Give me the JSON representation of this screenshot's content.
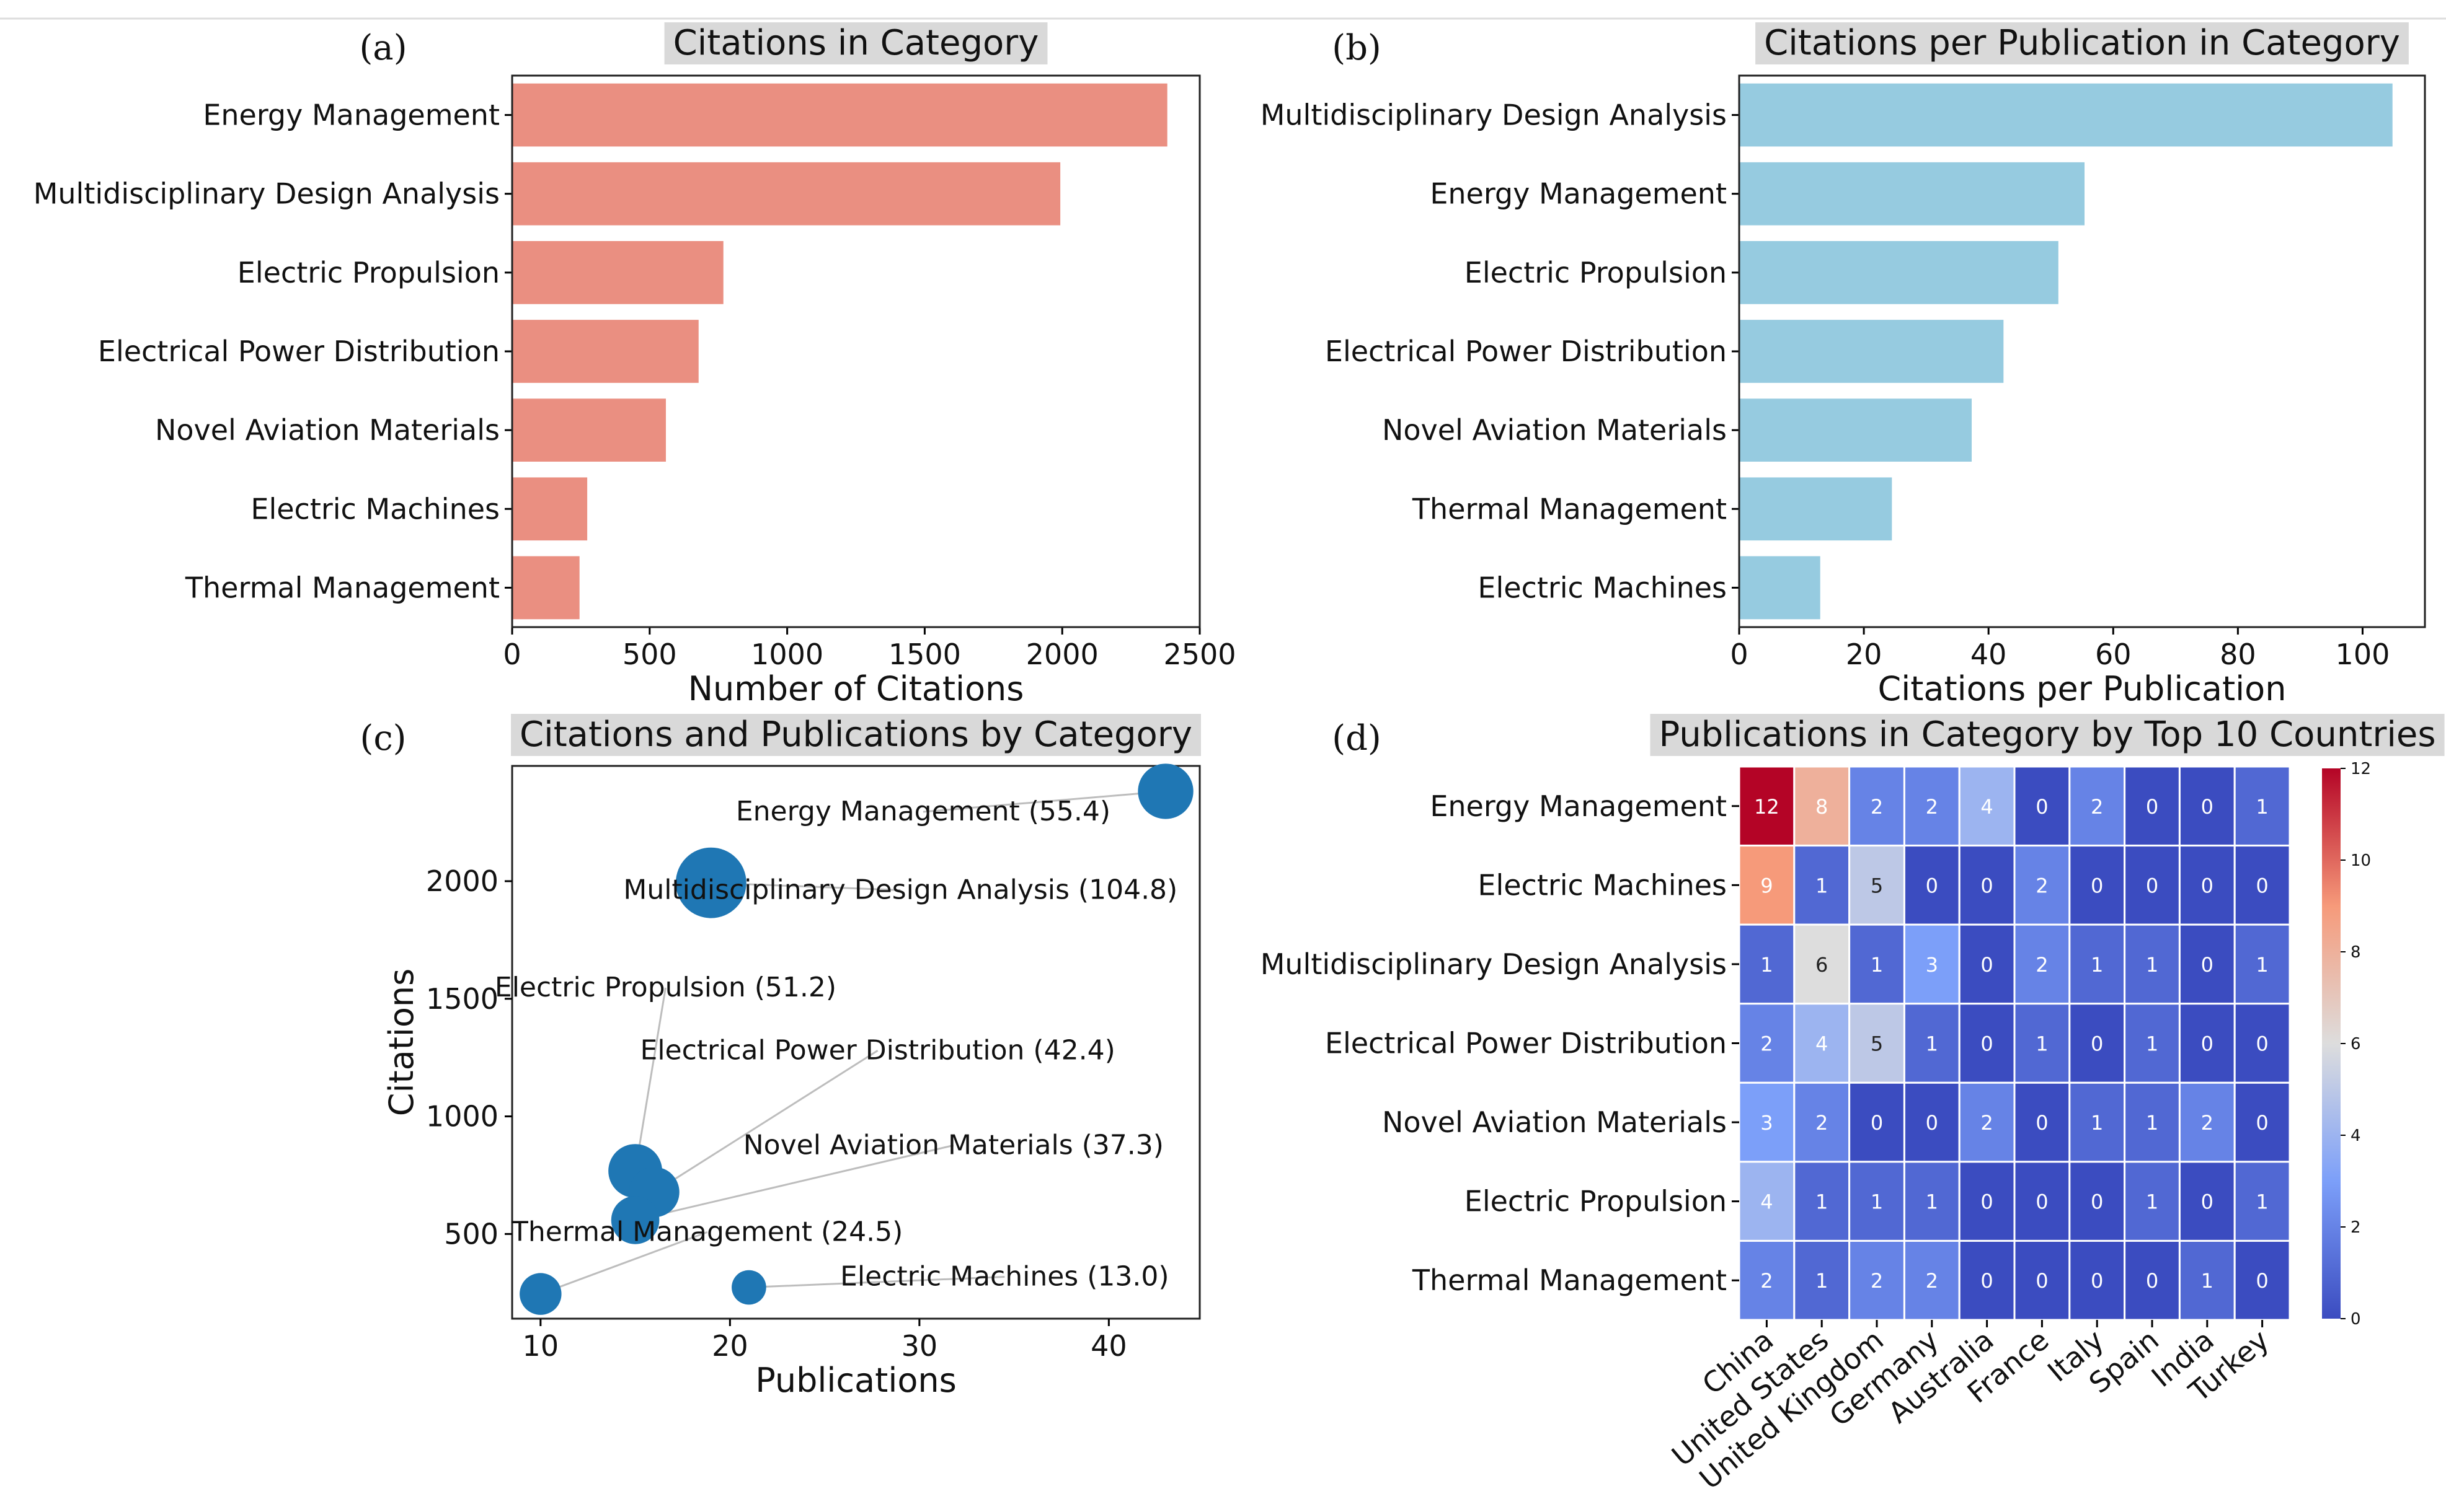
{
  "panels": {
    "a": {
      "letter": "(a)"
    },
    "b": {
      "letter": "(b)"
    },
    "c": {
      "letter": "(c)"
    },
    "d": {
      "letter": "(d)"
    }
  },
  "chart_data": [
    {
      "id": "a",
      "type": "bar",
      "orientation": "horizontal",
      "title": "Citations in Category",
      "xlabel": "Number of Citations",
      "ylabel": "",
      "categories": [
        "Energy Management",
        "Multidisciplinary Design Analysis",
        "Electric Propulsion",
        "Electrical Power Distribution",
        "Novel Aviation Materials",
        "Electric Machines",
        "Thermal Management"
      ],
      "values": [
        2382,
        1993,
        768,
        678,
        559,
        273,
        245
      ],
      "xlim": [
        0,
        2500
      ],
      "xticks": [
        0,
        500,
        1000,
        1500,
        2000,
        2500
      ],
      "color": "#ea8f81",
      "grid": false
    },
    {
      "id": "b",
      "type": "bar",
      "orientation": "horizontal",
      "title": "Citations per Publication in Category",
      "xlabel": "Citations per Publication",
      "ylabel": "",
      "categories": [
        "Multidisciplinary Design Analysis",
        "Energy Management",
        "Electric Propulsion",
        "Electrical Power Distribution",
        "Novel Aviation Materials",
        "Thermal Management",
        "Electric Machines"
      ],
      "values": [
        104.8,
        55.4,
        51.2,
        42.4,
        37.3,
        24.5,
        13.0
      ],
      "xlim": [
        0,
        110
      ],
      "xticks": [
        0,
        20,
        40,
        60,
        80,
        100
      ],
      "color": "#96cbe0",
      "grid": false
    },
    {
      "id": "c",
      "type": "scatter",
      "title": "Citations and Publications by Category",
      "xlabel": "Publications",
      "ylabel": "Citations",
      "xlim": [
        8.5,
        44.8
      ],
      "ylim": [
        140,
        2490
      ],
      "xticks": [
        10,
        20,
        30,
        40
      ],
      "yticks": [
        500,
        1000,
        1500,
        2000
      ],
      "color": "#1f77b4",
      "points": [
        {
          "name": "Energy Management",
          "x": 43,
          "y": 2382,
          "size": 55.4,
          "label": "Energy Management (55.4)",
          "label_x": 30.2,
          "label_y": 2258
        },
        {
          "name": "Multidisciplinary Design Analysis",
          "x": 19,
          "y": 1993,
          "size": 104.8,
          "label": "Multidisciplinary Design Analysis (104.8)",
          "label_x": 29.0,
          "label_y": 1925
        },
        {
          "name": "Electric Propulsion",
          "x": 15,
          "y": 768,
          "size": 51.2,
          "label": "Electric Propulsion (51.2)",
          "label_x": 16.6,
          "label_y": 1510
        },
        {
          "name": "Electrical Power Distribution",
          "x": 16,
          "y": 678,
          "size": 42.4,
          "label": "Electrical Power Distribution (42.4)",
          "label_x": 27.8,
          "label_y": 1243
        },
        {
          "name": "Novel Aviation Materials",
          "x": 15,
          "y": 559,
          "size": 37.3,
          "label": "Novel Aviation Materials (37.3)",
          "label_x": 31.8,
          "label_y": 840
        },
        {
          "name": "Thermal Management",
          "x": 10,
          "y": 245,
          "size": 24.5,
          "label": "Thermal Management (24.5)",
          "label_x": 18.8,
          "label_y": 471
        },
        {
          "name": "Electric Machines",
          "x": 21,
          "y": 273,
          "size": 13.0,
          "label": "Electric Machines (13.0)",
          "label_x": 34.5,
          "label_y": 281
        }
      ]
    },
    {
      "id": "d",
      "type": "heatmap",
      "title": "Publications in Category by Top 10 Countries",
      "xlabel": "",
      "ylabel": "",
      "rows": [
        "Energy Management",
        "Electric Machines",
        "Multidisciplinary Design Analysis",
        "Electrical Power Distribution",
        "Novel Aviation Materials",
        "Electric Propulsion",
        "Thermal Management"
      ],
      "columns": [
        "China",
        "United States",
        "United Kingdom",
        "Germany",
        "Australia",
        "France",
        "Italy",
        "Spain",
        "India",
        "Turkey"
      ],
      "values": [
        [
          12,
          8,
          2,
          2,
          4,
          0,
          2,
          0,
          0,
          1
        ],
        [
          9,
          1,
          5,
          0,
          0,
          2,
          0,
          0,
          0,
          0
        ],
        [
          1,
          6,
          1,
          3,
          0,
          2,
          1,
          1,
          0,
          1
        ],
        [
          2,
          4,
          5,
          1,
          0,
          1,
          0,
          1,
          0,
          0
        ],
        [
          3,
          2,
          0,
          0,
          2,
          0,
          1,
          1,
          2,
          0
        ],
        [
          4,
          1,
          1,
          1,
          0,
          0,
          0,
          1,
          0,
          1
        ],
        [
          2,
          1,
          2,
          2,
          0,
          0,
          0,
          0,
          1,
          0
        ]
      ],
      "vmin": 0,
      "vmax": 12,
      "colorbar_ticks": [
        0,
        2,
        4,
        6,
        8,
        10,
        12
      ],
      "colormap": "coolwarm"
    }
  ]
}
